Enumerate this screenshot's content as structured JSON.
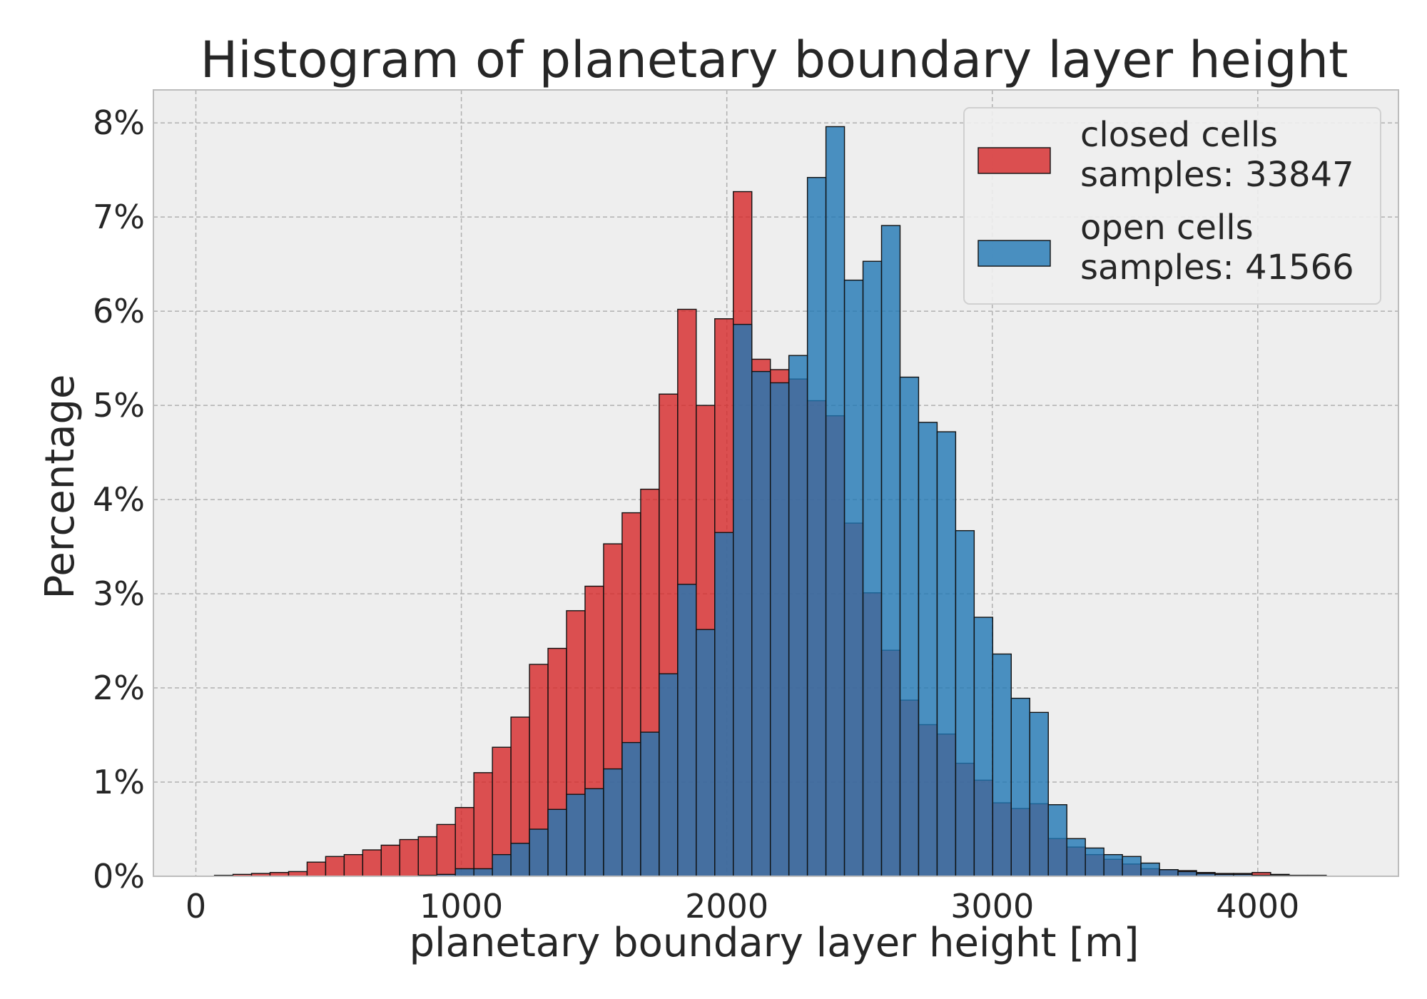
{
  "chart_data": {
    "type": "bar",
    "title": "Histogram of planetary boundary layer height",
    "xlabel": "planetary boundary layer height [m]",
    "ylabel": "Percentage",
    "xlim": [
      -160,
      4530
    ],
    "ylim": [
      0,
      8.35
    ],
    "xticks": [
      0,
      1000,
      2000,
      3000,
      4000
    ],
    "xtick_labels": [
      "0",
      "1000",
      "2000",
      "3000",
      "4000"
    ],
    "yticks": [
      0,
      1,
      2,
      3,
      4,
      5,
      6,
      7,
      8
    ],
    "ytick_labels": [
      "0%",
      "1%",
      "2%",
      "3%",
      "4%",
      "5%",
      "6%",
      "7%",
      "8%"
    ],
    "grid": true,
    "legend_position": "top-right",
    "bin_edges_start": 70,
    "bin_width": 69.8,
    "series": [
      {
        "name": "closed cells",
        "legend_lines": [
          "closed cells",
          "samples: 33847"
        ],
        "color": "#d62728",
        "values": [
          0.01,
          0.02,
          0.03,
          0.04,
          0.05,
          0.15,
          0.21,
          0.23,
          0.28,
          0.33,
          0.39,
          0.42,
          0.55,
          0.73,
          1.1,
          1.37,
          1.69,
          2.25,
          2.42,
          2.82,
          3.08,
          3.53,
          3.86,
          4.11,
          5.12,
          6.02,
          5.0,
          5.92,
          7.27,
          5.49,
          5.38,
          5.28,
          5.05,
          4.89,
          3.75,
          3.01,
          2.4,
          1.87,
          1.61,
          1.51,
          1.2,
          1.02,
          0.78,
          0.72,
          0.77,
          0.4,
          0.31,
          0.23,
          0.18,
          0.13,
          0.08,
          0.07,
          0.06,
          0.04,
          0.03,
          0.03,
          0.04,
          0.02,
          0.01,
          0.01
        ]
      },
      {
        "name": "open cells",
        "legend_lines": [
          "open cells",
          "samples: 41566"
        ],
        "color": "#1f77b4",
        "values": [
          0.0,
          0.0,
          0.0,
          0.0,
          0.0,
          0.0,
          0.0,
          0.0,
          0.0,
          0.0,
          0.0,
          0.01,
          0.02,
          0.08,
          0.08,
          0.23,
          0.35,
          0.5,
          0.71,
          0.87,
          0.93,
          1.14,
          1.42,
          1.53,
          2.15,
          3.1,
          2.62,
          3.65,
          5.86,
          5.36,
          5.24,
          5.53,
          7.42,
          7.96,
          6.33,
          6.53,
          6.91,
          5.3,
          4.82,
          4.72,
          3.67,
          2.75,
          2.36,
          1.89,
          1.74,
          0.76,
          0.4,
          0.3,
          0.23,
          0.21,
          0.14,
          0.07,
          0.05,
          0.03,
          0.02,
          0.02,
          0.01,
          0.01,
          0.01,
          0.01
        ]
      }
    ]
  }
}
